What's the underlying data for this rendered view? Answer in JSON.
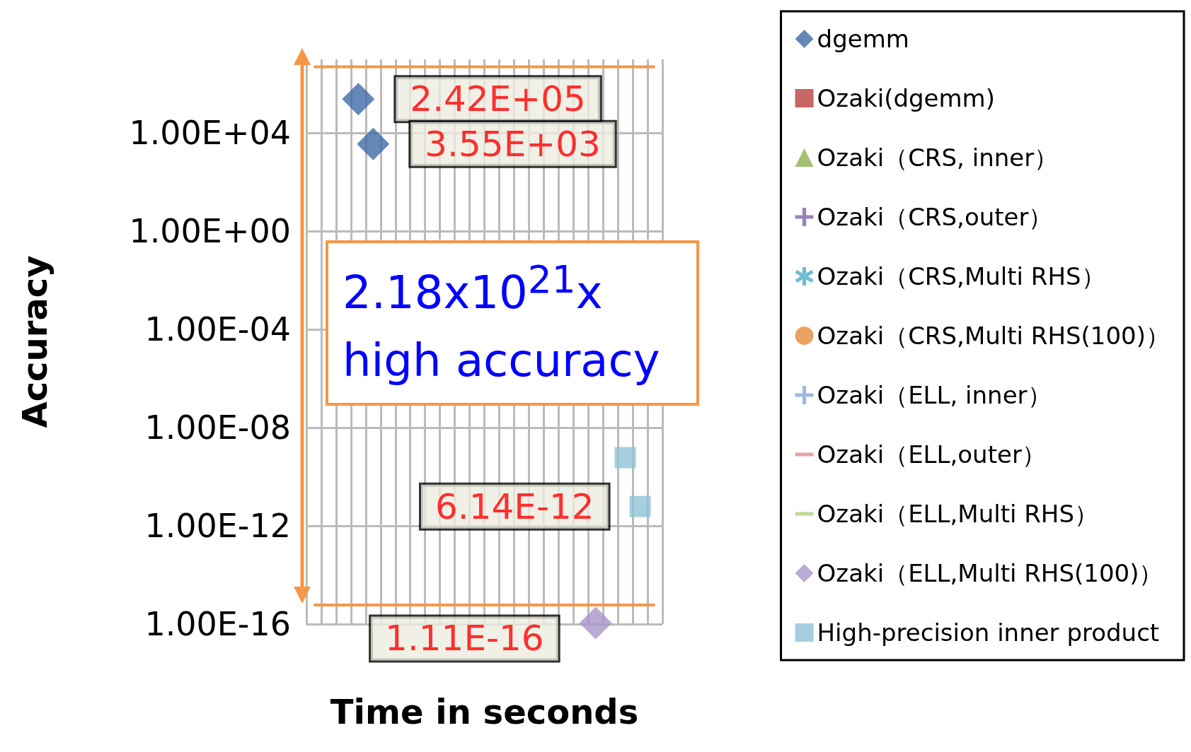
{
  "chart_data": {
    "type": "scatter",
    "xlabel": "Time in seconds",
    "ylabel": "Accuracy",
    "log": "y",
    "grid": true,
    "legend": "right",
    "categories": [
      null,
      null,
      null,
      null,
      null,
      null,
      null,
      null,
      null,
      null,
      null,
      null,
      null,
      null,
      null,
      null,
      null,
      null,
      null,
      null,
      null,
      null,
      null,
      null
    ],
    "ylim": [
      1e-16,
      10000000.0
    ],
    "yticks": [
      {
        "value": 1e-16,
        "label": "1.00E-16"
      },
      {
        "value": 1e-12,
        "label": "1.00E-12"
      },
      {
        "value": 1e-08,
        "label": "1.00E-08"
      },
      {
        "value": 0.0001,
        "label": "1.00E-04"
      },
      {
        "value": 1,
        "label": "1.00E+00"
      },
      {
        "value": 10000.0,
        "label": "1.00E+04"
      }
    ],
    "series": [
      {
        "name": "dgemm",
        "color": "#3f6aa6",
        "marker": "diamond",
        "values": [
          null,
          null,
          null,
          242000,
          3550,
          null,
          null,
          null,
          null,
          null,
          null,
          null,
          null,
          null,
          null,
          null,
          null,
          null,
          null,
          null,
          null,
          null,
          null,
          null
        ],
        "value_labels": [
          null,
          null,
          null,
          "2.42E+05",
          "3.55E+03",
          null,
          null,
          null,
          null,
          null,
          null,
          null,
          null,
          null,
          null,
          null,
          null,
          null,
          null,
          null,
          null,
          null,
          null,
          null
        ]
      },
      {
        "name": "Ozaki(dgemm)",
        "color": "#b8403e",
        "marker": "square",
        "values": [
          null,
          null,
          null,
          null,
          null,
          null,
          null,
          null,
          null,
          null,
          null,
          null,
          null,
          null,
          null,
          null,
          null,
          null,
          null,
          null,
          null,
          null,
          null,
          null
        ]
      },
      {
        "name": "Ozaki（CRS, inner）",
        "color": "#8cb250",
        "marker": "triangle",
        "values": [
          null,
          null,
          null,
          null,
          null,
          null,
          null,
          null,
          null,
          null,
          null,
          null,
          null,
          null,
          null,
          null,
          null,
          null,
          null,
          null,
          null,
          null,
          null,
          null
        ]
      },
      {
        "name": "Ozaki（CRS,outer）",
        "color": "#7e63a6",
        "marker": "cross",
        "values": [
          null,
          null,
          null,
          null,
          null,
          null,
          null,
          null,
          null,
          null,
          null,
          null,
          null,
          null,
          null,
          null,
          null,
          null,
          null,
          null,
          null,
          null,
          null,
          null
        ]
      },
      {
        "name": "Ozaki（CRS,Multi RHS）",
        "color": "#4aacc6",
        "marker": "star",
        "values": [
          null,
          null,
          null,
          null,
          null,
          null,
          null,
          null,
          null,
          null,
          null,
          null,
          null,
          null,
          null,
          null,
          null,
          null,
          null,
          null,
          null,
          null,
          null,
          null
        ]
      },
      {
        "name": "Ozaki（CRS,Multi RHS(100)）",
        "color": "#e5893a",
        "marker": "circle",
        "values": [
          null,
          null,
          null,
          null,
          null,
          null,
          null,
          null,
          null,
          null,
          null,
          null,
          null,
          null,
          null,
          null,
          null,
          null,
          null,
          null,
          null,
          null,
          null,
          null
        ]
      },
      {
        "name": "Ozaki（ELL, inner）",
        "color": "#8aa6d6",
        "marker": "cross",
        "values": [
          null,
          null,
          null,
          null,
          null,
          null,
          null,
          null,
          null,
          null,
          null,
          null,
          null,
          null,
          null,
          null,
          null,
          null,
          null,
          null,
          null,
          null,
          null,
          null
        ]
      },
      {
        "name": "Ozaki（ELL,outer）",
        "color": "#e0908c",
        "marker": "none",
        "values": [
          null,
          null,
          null,
          null,
          null,
          null,
          null,
          null,
          null,
          null,
          null,
          null,
          null,
          null,
          null,
          null,
          null,
          null,
          null,
          null,
          null,
          null,
          null,
          null
        ]
      },
      {
        "name": "Ozaki（ELL,Multi RHS）",
        "color": "#b2d07e",
        "marker": "none",
        "values": [
          null,
          null,
          null,
          null,
          null,
          null,
          null,
          null,
          null,
          null,
          null,
          null,
          null,
          null,
          null,
          null,
          null,
          null,
          null,
          null,
          null,
          null,
          null,
          null
        ]
      },
      {
        "name": "Ozaki（ELL,Multi RHS(100)）",
        "color": "#a896c8",
        "marker": "diamond",
        "values": [
          null,
          null,
          null,
          null,
          null,
          null,
          null,
          null,
          null,
          null,
          null,
          null,
          null,
          null,
          null,
          null,
          null,
          null,
          null,
          1.11e-16,
          null,
          null,
          null,
          null
        ],
        "value_labels": [
          null,
          null,
          null,
          null,
          null,
          null,
          null,
          null,
          null,
          null,
          null,
          null,
          null,
          null,
          null,
          null,
          null,
          null,
          null,
          "1.11E-16",
          null,
          null,
          null,
          null
        ]
      },
      {
        "name": "High-precision inner product",
        "color": "#8ec3d6",
        "marker": "square",
        "values": [
          null,
          null,
          null,
          null,
          null,
          null,
          null,
          null,
          null,
          null,
          null,
          null,
          null,
          null,
          null,
          null,
          null,
          null,
          null,
          null,
          null,
          6e-10,
          6.14e-12,
          null
        ],
        "value_labels": [
          null,
          null,
          null,
          null,
          null,
          null,
          null,
          null,
          null,
          null,
          null,
          null,
          null,
          null,
          null,
          null,
          null,
          null,
          null,
          null,
          null,
          null,
          "6.14E-12",
          null
        ]
      }
    ],
    "ref_lines": [
      {
        "axis": "y",
        "value": 5000000,
        "color": "#f79646"
      },
      {
        "axis": "y",
        "value": 6e-16,
        "color": "#f79646"
      }
    ],
    "annotations": [
      "2.18x10$^{21}$x\nhigh accuracy"
    ]
  }
}
